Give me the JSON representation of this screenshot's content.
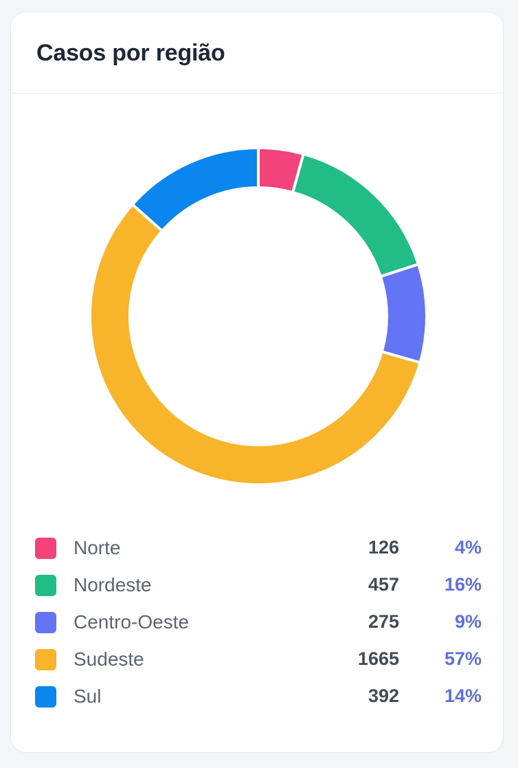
{
  "card": {
    "title": "Casos por região"
  },
  "chart_data": {
    "type": "pie",
    "variant": "doughnut",
    "categories": [
      "Norte",
      "Nordeste",
      "Centro-Oeste",
      "Sudeste",
      "Sul"
    ],
    "values": [
      126,
      457,
      275,
      1665,
      392
    ],
    "percent_labels": [
      "4%",
      "16%",
      "9%",
      "57%",
      "14%"
    ],
    "colors": [
      "#f2437a",
      "#22bc86",
      "#6374f4",
      "#f8b42a",
      "#0b86ef"
    ],
    "legend_position": "bottom"
  }
}
